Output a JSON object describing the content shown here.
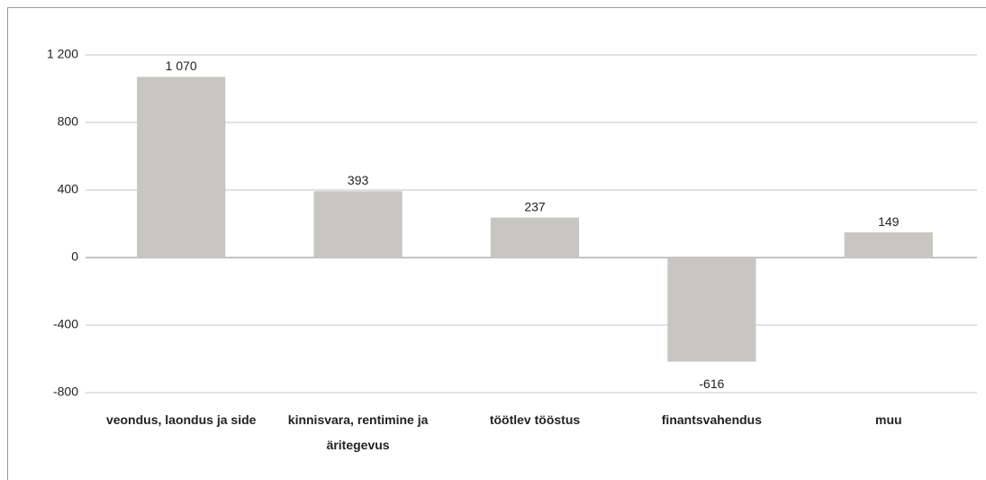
{
  "chart_data": {
    "type": "bar",
    "categories": [
      "veondus, laondus ja side",
      "kinnisvara, rentimine ja äritegevus",
      "töötlev tööstus",
      "finantsvahendus",
      "muu"
    ],
    "values": [
      1070,
      393,
      237,
      -616,
      149
    ],
    "value_labels": [
      "1 070",
      "393",
      "237",
      "-616",
      "149"
    ],
    "color": "#c8c6c1",
    "ylim": [
      -800,
      1200
    ],
    "yticks": [
      -800,
      -400,
      0,
      400,
      800,
      {
        "value": 1200,
        "label": "1 200"
      }
    ],
    "grid": true
  }
}
